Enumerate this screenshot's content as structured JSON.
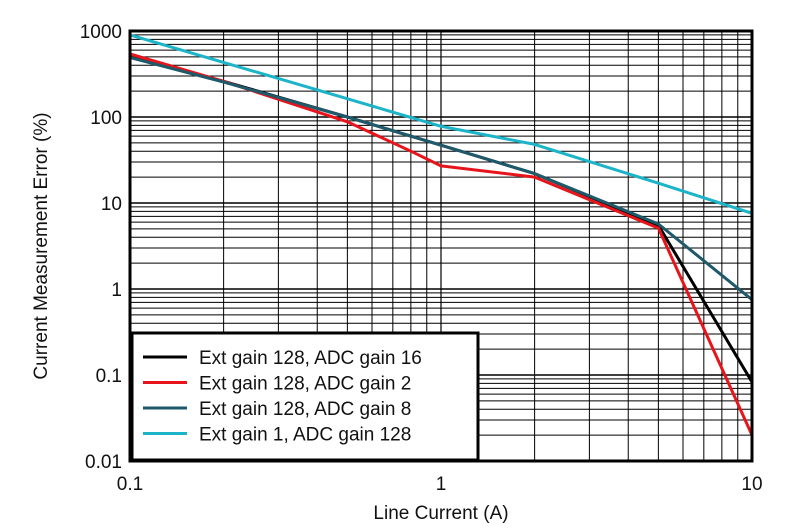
{
  "chart_data": {
    "type": "line",
    "title": "",
    "xlabel": "Line Current (A)",
    "ylabel": "Current Measurement Error (%)",
    "xscale": "log",
    "yscale": "log",
    "xlim": [
      0.1,
      10
    ],
    "ylim": [
      0.01,
      1000
    ],
    "grid": true,
    "legend_position": "bottom-left",
    "xticks": [
      {
        "value": 0.1,
        "label": "0.1"
      },
      {
        "value": 1,
        "label": "1"
      },
      {
        "value": 10,
        "label": "10"
      }
    ],
    "yticks": [
      {
        "value": 0.01,
        "label": "0.01"
      },
      {
        "value": 0.1,
        "label": "0.1"
      },
      {
        "value": 1,
        "label": "1"
      },
      {
        "value": 10,
        "label": "10"
      },
      {
        "value": 100,
        "label": "100"
      },
      {
        "value": 1000,
        "label": "1000"
      }
    ],
    "series": [
      {
        "name": "Ext gain 128, ADC gain 16",
        "color": "#000000",
        "x": [
          0.1,
          0.2,
          0.5,
          1,
          2,
          5,
          10
        ],
        "y": [
          500,
          260,
          100,
          47,
          22,
          5.5,
          0.083
        ]
      },
      {
        "name": "Ext gain 128, ADC gain 2",
        "color": "#E8141B",
        "x": [
          0.1,
          0.2,
          0.5,
          0.8,
          1,
          2,
          5,
          10
        ],
        "y": [
          540,
          260,
          88,
          40,
          27,
          20,
          5.1,
          0.02
        ]
      },
      {
        "name": "Ext gain 128, ADC gain 8",
        "color": "#1F5A6B",
        "x": [
          0.1,
          0.2,
          0.5,
          1,
          2,
          5,
          10
        ],
        "y": [
          490,
          255,
          100,
          47,
          22,
          5.7,
          0.75
        ]
      },
      {
        "name": "Ext gain 1, ADC gain 128",
        "color": "#1CB4C8",
        "x": [
          0.1,
          1,
          2,
          5,
          10
        ],
        "y": [
          900,
          78,
          48,
          17,
          7.6
        ]
      }
    ]
  }
}
